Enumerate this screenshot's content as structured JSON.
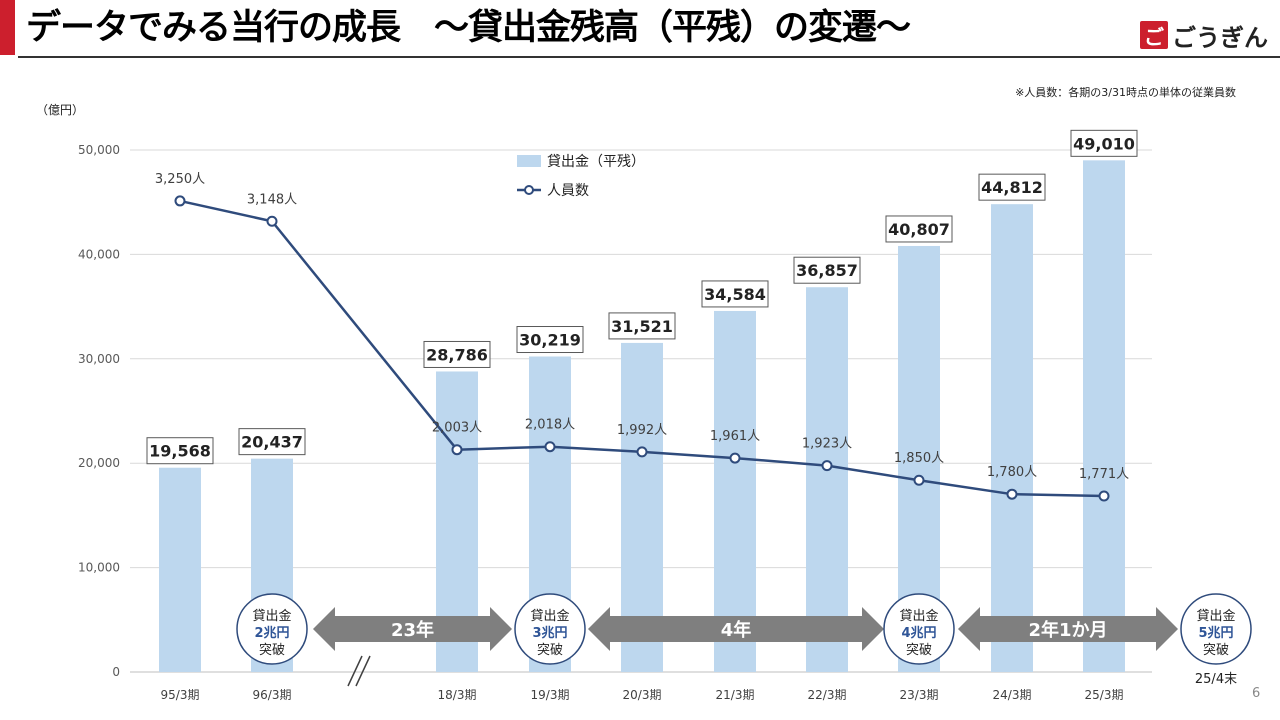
{
  "header": {
    "title": "データでみる当行の成長　～貸出金残高（平残）の変遷～",
    "logo_mark": "ご",
    "logo_text": "ごうぎん"
  },
  "note": "※人員数：各期の3/31時点の単体の従業員数",
  "unit_label": "（億円）",
  "page_number": "6",
  "colors": {
    "bar": "#bdd7ee",
    "line": "#2f4b7c",
    "accent": "#cc1f2d",
    "arrow": "#7f7f7f",
    "circle_text": "#2f5597"
  },
  "chart_data": {
    "type": "bar+line",
    "categories": [
      "95/3期",
      "96/3期",
      "18/3期",
      "19/3期",
      "20/3期",
      "21/3期",
      "22/3期",
      "23/3期",
      "24/3期",
      "25/3期"
    ],
    "series": [
      {
        "name": "貸出金（平残）",
        "kind": "bar",
        "values": [
          19568,
          20437,
          28786,
          30219,
          31521,
          34584,
          36857,
          40807,
          44812,
          49010
        ],
        "labels": [
          "19,568",
          "20,437",
          "28,786",
          "30,219",
          "31,521",
          "34,584",
          "36,857",
          "40,807",
          "44,812",
          "49,010"
        ]
      },
      {
        "name": "人員数",
        "kind": "line",
        "values": [
          3250,
          3148,
          2003,
          2018,
          1992,
          1961,
          1923,
          1850,
          1780,
          1771
        ],
        "labels": [
          "3,250人",
          "3,148人",
          "2,003人",
          "2,018人",
          "1,992人",
          "1,961人",
          "1,923人",
          "1,850人",
          "1,780人",
          "1,771人"
        ]
      }
    ],
    "ylim": [
      0,
      50000
    ],
    "yticks": [
      "0",
      "10,000",
      "20,000",
      "30,000",
      "40,000",
      "50,000"
    ],
    "legend": [
      "貸出金（平残）",
      "人員数"
    ],
    "milestones": [
      {
        "line1": "貸出金",
        "line2": "2兆円",
        "line3": "突破",
        "sub": ""
      },
      {
        "line1": "貸出金",
        "line2": "3兆円",
        "line3": "突破",
        "sub": ""
      },
      {
        "line1": "貸出金",
        "line2": "4兆円",
        "line3": "突破",
        "sub": ""
      },
      {
        "line1": "貸出金",
        "line2": "5兆円",
        "line3": "突破",
        "sub": "25/4末"
      }
    ],
    "spans": [
      "23年",
      "4年",
      "2年1か月"
    ],
    "axis_break": "//"
  }
}
